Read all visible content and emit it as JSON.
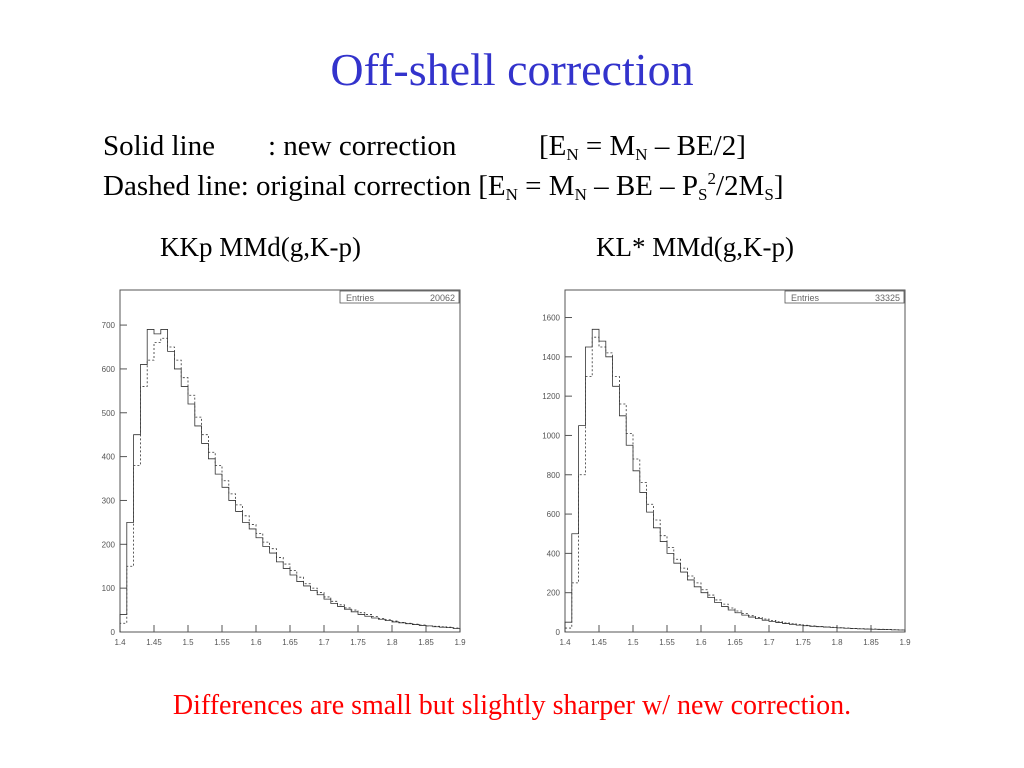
{
  "slide": {
    "title": "Off-shell correction",
    "conclusion": "Differences are small but slightly sharper w/ new correction."
  },
  "legend": {
    "solid_name": "Solid line",
    "solid_colon": ": new correction",
    "dashed_prefix": "Dashed line: original correction [E",
    "formula_open": "[E",
    "sub_N": "N",
    "eq_M": " = M",
    "close_new": " – BE/2]",
    "mid_old": " – BE – P",
    "sub_S": "S",
    "sup_2": "2",
    "slash_2M": "/2M",
    "bracket_close": "]"
  },
  "colors": {
    "title": "#3333cc",
    "conclusion": "#ff0000",
    "axis": "#555555",
    "line": "#333333"
  },
  "chart_data": [
    {
      "type": "histogram",
      "title": "KKp MMd(g,K-p)",
      "stats_label": "Entries",
      "stats_value": "20062",
      "xlim": [
        1.4,
        1.9
      ],
      "ylim": [
        0,
        780
      ],
      "xticks": [
        "1.4",
        "1.45",
        "1.5",
        "1.55",
        "1.6",
        "1.65",
        "1.7",
        "1.75",
        "1.8",
        "1.85",
        "1.9"
      ],
      "yticks": [
        "0",
        "100",
        "200",
        "300",
        "400",
        "500",
        "600",
        "700"
      ],
      "bin_width": 0.01,
      "series": [
        {
          "style": "solid",
          "values": [
            40,
            250,
            450,
            610,
            690,
            680,
            690,
            640,
            600,
            560,
            520,
            470,
            430,
            395,
            360,
            330,
            300,
            275,
            250,
            235,
            215,
            195,
            180,
            160,
            145,
            130,
            115,
            105,
            95,
            85,
            75,
            65,
            58,
            52,
            46,
            40,
            36,
            32,
            29,
            26,
            23,
            21,
            19,
            17,
            15,
            14,
            12,
            11,
            10,
            8
          ]
        },
        {
          "style": "dashed",
          "values": [
            20,
            150,
            380,
            560,
            620,
            660,
            670,
            650,
            620,
            580,
            540,
            490,
            450,
            410,
            380,
            345,
            315,
            290,
            265,
            245,
            225,
            205,
            190,
            170,
            155,
            140,
            125,
            110,
            100,
            90,
            80,
            70,
            62,
            55,
            50,
            44,
            40,
            35,
            31,
            28,
            25,
            22,
            20,
            18,
            16,
            14,
            13,
            12,
            11,
            9
          ]
        }
      ]
    },
    {
      "type": "histogram",
      "title": "KL* MMd(g,K-p)",
      "stats_label": "Entries",
      "stats_value": "33325",
      "xlim": [
        1.4,
        1.9
      ],
      "ylim": [
        0,
        1740
      ],
      "xticks": [
        "1.4",
        "1.45",
        "1.5",
        "1.55",
        "1.6",
        "1.65",
        "1.7",
        "1.75",
        "1.8",
        "1.85",
        "1.9"
      ],
      "yticks": [
        "0",
        "200",
        "400",
        "600",
        "800",
        "1000",
        "1200",
        "1400",
        "1600"
      ],
      "bin_width": 0.01,
      "series": [
        {
          "style": "solid",
          "values": [
            50,
            500,
            1050,
            1450,
            1540,
            1480,
            1400,
            1250,
            1100,
            950,
            820,
            710,
            610,
            530,
            460,
            400,
            350,
            305,
            265,
            230,
            200,
            175,
            150,
            130,
            112,
            98,
            86,
            76,
            68,
            60,
            54,
            48,
            43,
            39,
            35,
            32,
            29,
            27,
            25,
            23,
            21,
            19,
            17,
            16,
            15,
            14,
            13,
            12,
            11,
            10
          ]
        },
        {
          "style": "dashed",
          "values": [
            20,
            250,
            800,
            1300,
            1500,
            1450,
            1420,
            1300,
            1160,
            1010,
            880,
            760,
            650,
            570,
            490,
            430,
            370,
            325,
            285,
            250,
            215,
            188,
            163,
            142,
            122,
            107,
            94,
            83,
            74,
            66,
            59,
            52,
            46,
            42,
            38,
            34,
            31,
            28,
            26,
            24,
            22,
            20,
            18,
            17,
            16,
            15,
            14,
            13,
            12,
            11
          ]
        }
      ]
    }
  ]
}
